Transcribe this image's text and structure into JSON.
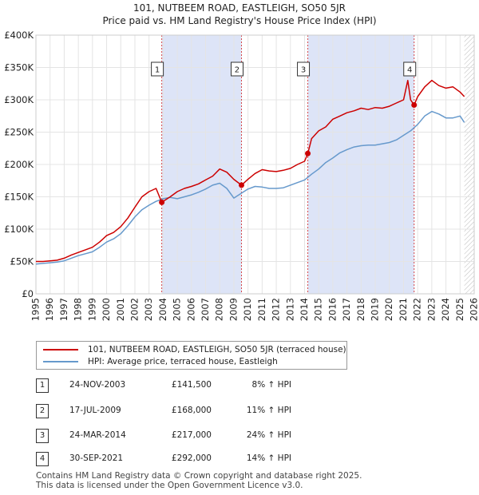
{
  "title_line1": "101, NUTBEEM ROAD, EASTLEIGH, SO50 5JR",
  "title_line2": "Price paid vs. HM Land Registry's House Price Index (HPI)",
  "chart_data": {
    "type": "line",
    "title": "101, NUTBEEM ROAD, EASTLEIGH, SO50 5JR — Price paid vs. HM Land Registry's House Price Index (HPI)",
    "xlabel": "",
    "ylabel": "",
    "xlim": [
      1995,
      2026
    ],
    "ylim": [
      0,
      400000
    ],
    "x_ticks": [
      1995,
      1996,
      1997,
      1998,
      1999,
      2000,
      2001,
      2002,
      2003,
      2004,
      2005,
      2006,
      2007,
      2008,
      2009,
      2010,
      2011,
      2012,
      2013,
      2014,
      2015,
      2016,
      2017,
      2018,
      2019,
      2020,
      2021,
      2022,
      2023,
      2024,
      2025,
      2026
    ],
    "y_ticks": [
      0,
      50000,
      100000,
      150000,
      200000,
      250000,
      300000,
      350000,
      400000
    ],
    "y_tick_labels": [
      "£0",
      "£50K",
      "£100K",
      "£150K",
      "£200K",
      "£250K",
      "£300K",
      "£350K",
      "£400K"
    ],
    "grid": true,
    "series": [
      {
        "name": "101, NUTBEEM ROAD, EASTLEIGH, SO50 5JR (terraced house)",
        "color": "#cc0000",
        "x": [
          1995.0,
          1995.5,
          1996.0,
          1996.5,
          1997.0,
          1997.5,
          1998.0,
          1998.5,
          1999.0,
          1999.5,
          2000.0,
          2000.5,
          2001.0,
          2001.5,
          2002.0,
          2002.5,
          2003.0,
          2003.5,
          2003.9,
          2004.5,
          2005.0,
          2005.5,
          2006.0,
          2006.5,
          2007.0,
          2007.5,
          2008.0,
          2008.5,
          2009.0,
          2009.54,
          2010.0,
          2010.5,
          2011.0,
          2011.5,
          2012.0,
          2012.5,
          2013.0,
          2013.5,
          2014.0,
          2014.23,
          2014.5,
          2015.0,
          2015.5,
          2016.0,
          2016.5,
          2017.0,
          2017.5,
          2018.0,
          2018.5,
          2019.0,
          2019.5,
          2020.0,
          2020.5,
          2021.0,
          2021.3,
          2021.5,
          2021.75,
          2022.0,
          2022.5,
          2023.0,
          2023.5,
          2024.0,
          2024.5,
          2025.0,
          2025.3
        ],
        "values": [
          50000,
          50000,
          51000,
          52000,
          55000,
          60000,
          64000,
          68000,
          72000,
          80000,
          90000,
          95000,
          104000,
          117000,
          134000,
          150000,
          158000,
          163000,
          141500,
          150000,
          158000,
          163000,
          166000,
          170000,
          176000,
          182000,
          193000,
          188000,
          177000,
          168000,
          177000,
          186000,
          192000,
          190000,
          189000,
          191000,
          194000,
          200000,
          205000,
          217000,
          240000,
          252000,
          258000,
          270000,
          275000,
          280000,
          283000,
          287000,
          285000,
          288000,
          287000,
          290000,
          295000,
          300000,
          330000,
          300000,
          292000,
          305000,
          320000,
          330000,
          322000,
          318000,
          320000,
          312000,
          305000
        ]
      },
      {
        "name": "HPI: Average price, terraced house, Eastleigh",
        "color": "#6699cc",
        "x": [
          1995.0,
          1995.5,
          1996.0,
          1996.5,
          1997.0,
          1997.5,
          1998.0,
          1998.5,
          1999.0,
          1999.5,
          2000.0,
          2000.5,
          2001.0,
          2001.5,
          2002.0,
          2002.5,
          2003.0,
          2003.5,
          2004.0,
          2004.5,
          2005.0,
          2005.5,
          2006.0,
          2006.5,
          2007.0,
          2007.5,
          2008.0,
          2008.5,
          2009.0,
          2009.5,
          2010.0,
          2010.5,
          2011.0,
          2011.5,
          2012.0,
          2012.5,
          2013.0,
          2013.5,
          2014.0,
          2014.5,
          2015.0,
          2015.5,
          2016.0,
          2016.5,
          2017.0,
          2017.5,
          2018.0,
          2018.5,
          2019.0,
          2019.5,
          2020.0,
          2020.5,
          2021.0,
          2021.5,
          2022.0,
          2022.5,
          2023.0,
          2023.5,
          2024.0,
          2024.5,
          2025.0,
          2025.3
        ],
        "values": [
          46000,
          47000,
          48000,
          49000,
          51000,
          55000,
          59000,
          62000,
          65000,
          72000,
          80000,
          85000,
          93000,
          105000,
          119000,
          130000,
          137000,
          143000,
          147000,
          149000,
          147000,
          150000,
          153000,
          157000,
          162000,
          168000,
          171000,
          163000,
          148000,
          155000,
          162000,
          166000,
          165000,
          163000,
          163000,
          164000,
          168000,
          172000,
          176000,
          185000,
          193000,
          203000,
          210000,
          218000,
          223000,
          227000,
          229000,
          230000,
          230000,
          232000,
          234000,
          238000,
          245000,
          252000,
          262000,
          275000,
          282000,
          278000,
          272000,
          272000,
          275000,
          265000
        ]
      }
    ],
    "transactions": [
      {
        "label": "1",
        "date": "24-NOV-2003",
        "price": "£141,500",
        "hpi": "8% ↑ HPI",
        "x": 2003.9,
        "y": 141500
      },
      {
        "label": "2",
        "date": "17-JUL-2009",
        "price": "£168,000",
        "hpi": "11% ↑ HPI",
        "x": 2009.54,
        "y": 168000
      },
      {
        "label": "3",
        "date": "24-MAR-2014",
        "price": "£217,000",
        "hpi": "24% ↑ HPI",
        "x": 2014.23,
        "y": 217000
      },
      {
        "label": "4",
        "date": "30-SEP-2021",
        "price": "£292,000",
        "hpi": "14% ↑ HPI",
        "x": 2021.75,
        "y": 292000
      }
    ],
    "shaded_periods": [
      [
        2003.9,
        2009.54
      ],
      [
        2014.23,
        2021.75
      ]
    ],
    "future_hatch_from": 2025.3,
    "colors": {
      "shade": "#dde4f7",
      "price_line": "#cc0000",
      "hpi_line": "#6699cc",
      "vline": "#cc0000"
    }
  },
  "legend": {
    "price_label": "101, NUTBEEM ROAD, EASTLEIGH, SO50 5JR (terraced house)",
    "hpi_label": "HPI: Average price, terraced house, Eastleigh"
  },
  "footer": {
    "line1": "Contains HM Land Registry data © Crown copyright and database right 2025.",
    "line2": "This data is licensed under the Open Government Licence v3.0."
  }
}
